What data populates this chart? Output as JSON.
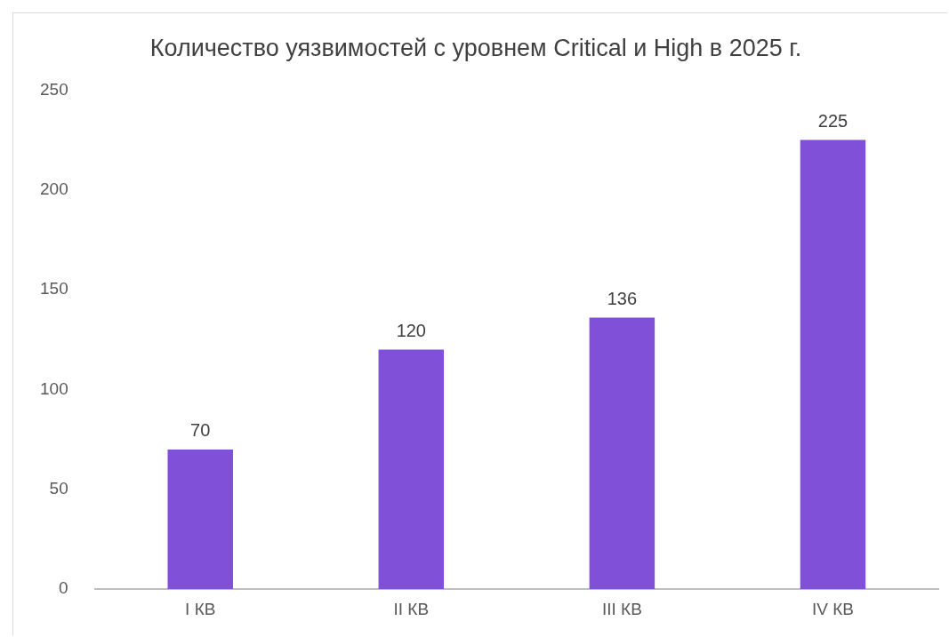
{
  "chart_data": {
    "type": "bar",
    "title": "Количество уязвимостей с уровнем Critical и High в 2025 г.",
    "categories": [
      "I КВ",
      "II КВ",
      "III КВ",
      "IV КВ"
    ],
    "values": [
      70,
      120,
      136,
      225
    ],
    "color": "#8150d8",
    "ylim": [
      0,
      250
    ],
    "yticks": [
      0,
      50,
      100,
      150,
      200,
      250
    ],
    "grid": false,
    "legend": false,
    "data_labels": true
  }
}
